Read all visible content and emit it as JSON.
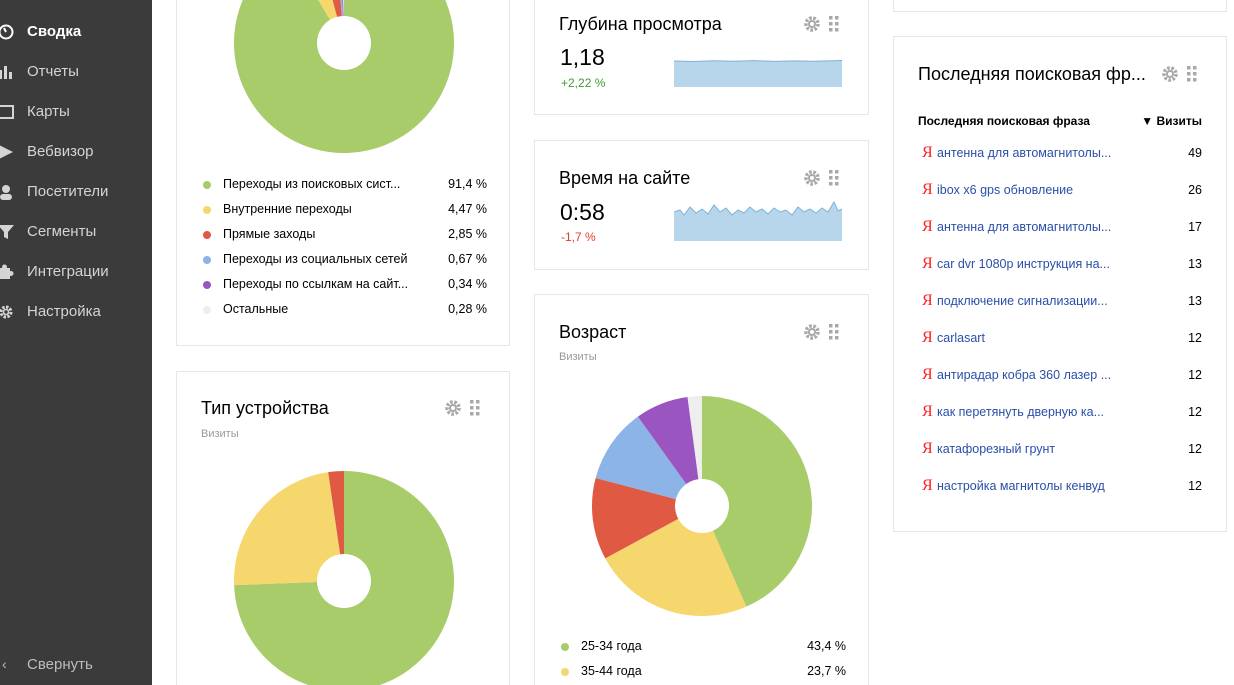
{
  "sidebar": {
    "items": [
      {
        "label": "Сводка",
        "icon": "gauge-icon",
        "active": true
      },
      {
        "label": "Отчеты",
        "icon": "bar-chart-icon"
      },
      {
        "label": "Карты",
        "icon": "map-icon"
      },
      {
        "label": "Вебвизор",
        "icon": "play-icon"
      },
      {
        "label": "Посетители",
        "icon": "person-icon"
      },
      {
        "label": "Сегменты",
        "icon": "filter-icon"
      },
      {
        "label": "Интеграции",
        "icon": "puzzle-icon"
      },
      {
        "label": "Настройка",
        "icon": "gear-icon"
      }
    ],
    "collapse_label": "Свернуть"
  },
  "sources_widget": {
    "legend": [
      {
        "label": "Переходы из поисковых сист...",
        "value": "91,4 %",
        "color": "#a8cc6a"
      },
      {
        "label": "Внутренние переходы",
        "value": "4,47 %",
        "color": "#f5d76e"
      },
      {
        "label": "Прямые заходы",
        "value": "2,85 %",
        "color": "#e05a43"
      },
      {
        "label": "Переходы из социальных сетей",
        "value": "0,67 %",
        "color": "#8db4e6"
      },
      {
        "label": "Переходы по ссылкам на сайт...",
        "value": "0,34 %",
        "color": "#9b55c0"
      },
      {
        "label": "Остальные",
        "value": "0,28 %",
        "color": "#eeeeee"
      }
    ]
  },
  "device_widget": {
    "title": "Тип устройства",
    "subtitle": "Визиты",
    "segments": [
      {
        "share": 0.744,
        "color": "#a8cc6a"
      },
      {
        "share": 0.233,
        "color": "#f5d76e"
      },
      {
        "share": 0.023,
        "color": "#e05a43"
      }
    ]
  },
  "depth_widget": {
    "title": "Глубина просмотра",
    "value": "1,18",
    "delta": "+2,22 %"
  },
  "time_widget": {
    "title": "Время на сайте",
    "value": "0:58",
    "delta": "-1,7 %"
  },
  "age_widget": {
    "title": "Возраст",
    "subtitle": "Визиты",
    "legend": [
      {
        "label": "25-34 года",
        "value": "43,4 %",
        "color": "#a8cc6a"
      },
      {
        "label": "35-44 года",
        "value": "23,7 %",
        "color": "#f5d76e"
      }
    ],
    "segments": [
      {
        "share": 0.434,
        "color": "#a8cc6a"
      },
      {
        "share": 0.237,
        "color": "#f5d76e"
      },
      {
        "share": 0.12,
        "color": "#e05a43"
      },
      {
        "share": 0.11,
        "color": "#8db4e6"
      },
      {
        "share": 0.078,
        "color": "#9b55c0"
      },
      {
        "share": 0.021,
        "color": "#eeeeee"
      }
    ]
  },
  "search_widget": {
    "title": "Последняя поисковая фр...",
    "col_phrase": "Последняя поисковая фраза",
    "col_visits": "▼ Визиты",
    "rows": [
      {
        "phrase": "антенна для автомагнитолы...",
        "visits": "49"
      },
      {
        "phrase": "ibox x6 gps обновление",
        "visits": "26"
      },
      {
        "phrase": "антенна для автомагнитолы...",
        "visits": "17"
      },
      {
        "phrase": "car dvr 1080p инструкция на...",
        "visits": "13"
      },
      {
        "phrase": "подключение сигнализации...",
        "visits": "13"
      },
      {
        "phrase": "carlasart",
        "visits": "12"
      },
      {
        "phrase": "антирадар кобра 360 лазер ...",
        "visits": "12"
      },
      {
        "phrase": "как перетянуть дверную ка...",
        "visits": "12"
      },
      {
        "phrase": "катафорезный грунт",
        "visits": "12"
      },
      {
        "phrase": "настройка магнитолы кенвуд",
        "visits": "12"
      }
    ]
  }
}
